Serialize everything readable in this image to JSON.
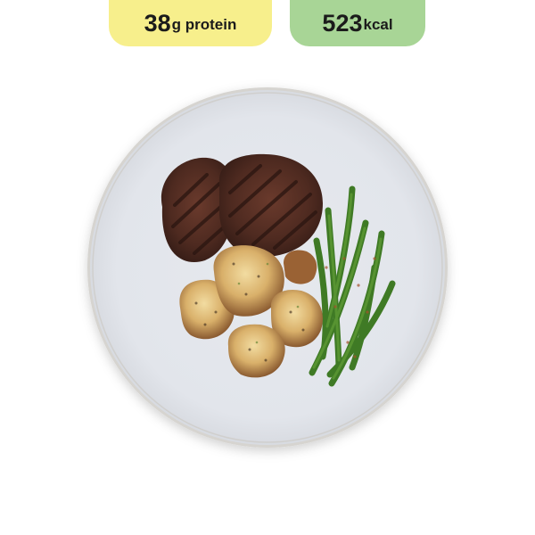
{
  "badges": {
    "protein": {
      "value": "38",
      "unit": "g protein",
      "color": "#f7ef8c"
    },
    "calories": {
      "value": "523",
      "unit": "kcal",
      "color": "#a8d596"
    }
  },
  "meal_image": {
    "plate_color": "#e4e7ec",
    "items": [
      "beef-patty-icon",
      "beef-patty-icon",
      "smashed-potato-icon",
      "green-beans-icon"
    ]
  }
}
